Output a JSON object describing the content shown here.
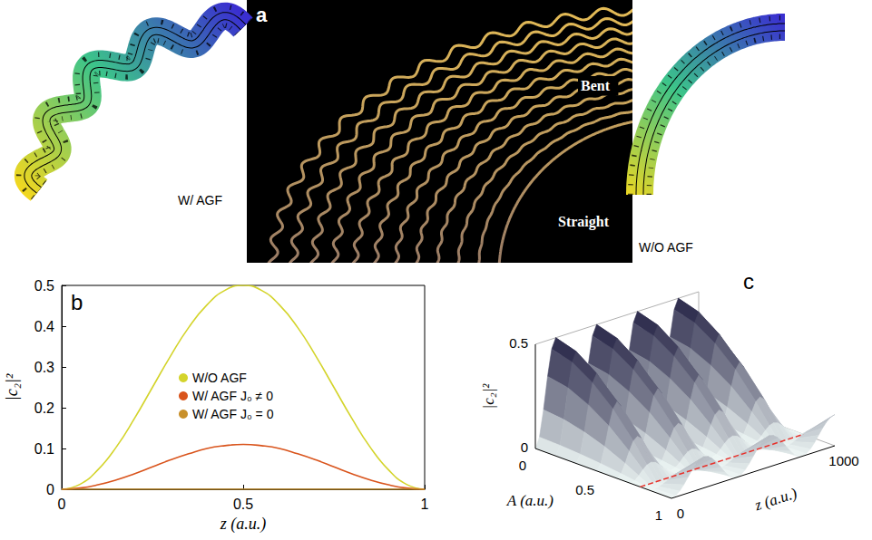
{
  "panel_a": {
    "label": "a",
    "bent": "Bent",
    "straight": "Straight",
    "with_agf": "W/ AGF",
    "without_agf": "W/O AGF"
  },
  "chart_data": [
    {
      "type": "line",
      "label": "b",
      "x_label": "z (a.u.)",
      "y_label": "|c₂|²",
      "x": [
        0,
        0.05,
        0.1,
        0.15,
        0.2,
        0.25,
        0.3,
        0.35,
        0.4,
        0.45,
        0.5,
        0.55,
        0.6,
        0.65,
        0.7,
        0.75,
        0.8,
        0.85,
        0.9,
        0.95,
        1
      ],
      "series": [
        {
          "name": "W/O AGF",
          "color": "#d4d42c",
          "values": [
            0,
            0.012,
            0.048,
            0.103,
            0.173,
            0.25,
            0.327,
            0.397,
            0.452,
            0.488,
            0.5,
            0.488,
            0.452,
            0.397,
            0.327,
            0.25,
            0.173,
            0.103,
            0.048,
            0.012,
            0
          ]
        },
        {
          "name": "W/ AGF J₀ ≠ 0",
          "color": "#d9541c",
          "values": [
            0,
            0.003,
            0.011,
            0.023,
            0.038,
            0.055,
            0.072,
            0.087,
            0.1,
            0.107,
            0.11,
            0.107,
            0.1,
            0.087,
            0.072,
            0.055,
            0.038,
            0.023,
            0.011,
            0.003,
            0
          ]
        },
        {
          "name": "W/ AGF J₀ = 0",
          "color": "#c8902a",
          "values": [
            0,
            0,
            0,
            0,
            0,
            0,
            0,
            0,
            0,
            0,
            0,
            0,
            0,
            0,
            0,
            0,
            0,
            0,
            0,
            0,
            0
          ]
        }
      ],
      "xlim": [
        0,
        1
      ],
      "xticks": [
        0,
        0.5,
        1
      ],
      "ylim": [
        0,
        0.5
      ],
      "yticks": [
        0,
        0.1,
        0.2,
        0.3,
        0.4,
        0.5
      ],
      "grid": false,
      "legend": "center"
    },
    {
      "type": "surface",
      "label": "c",
      "x_label": "z (a.u.)",
      "y_label": "A (a.u.)",
      "z_label": "|c₂|²",
      "x": [
        0,
        25,
        50,
        75,
        100,
        125,
        150,
        175,
        200,
        225,
        250,
        275,
        300,
        325,
        350,
        375,
        400,
        425,
        450,
        475,
        500,
        525,
        550,
        575,
        600,
        625,
        650,
        675,
        700,
        725,
        750,
        775,
        800,
        825,
        850,
        875,
        900,
        925,
        950,
        975,
        1000
      ],
      "y": [
        0,
        0.15,
        0.3,
        0.45,
        0.6,
        0.7,
        0.77,
        0.85,
        1
      ],
      "values": [
        [
          0,
          0.048,
          0.173,
          0.327,
          0.452,
          0.5,
          0.452,
          0.327,
          0.173,
          0.048,
          0,
          0.048,
          0.173,
          0.327,
          0.452,
          0.5,
          0.452,
          0.327,
          0.173,
          0.048,
          0,
          0.048,
          0.173,
          0.327,
          0.452,
          0.5,
          0.452,
          0.327,
          0.173,
          0.048,
          0,
          0.048,
          0.173,
          0.327,
          0.452,
          0.5,
          0.452,
          0.327,
          0.173,
          0.048,
          0
        ],
        [
          0,
          0.045,
          0.162,
          0.308,
          0.425,
          0.47,
          0.425,
          0.308,
          0.162,
          0.045,
          0,
          0.045,
          0.162,
          0.308,
          0.425,
          0.47,
          0.425,
          0.308,
          0.162,
          0.045,
          0,
          0.045,
          0.162,
          0.308,
          0.425,
          0.47,
          0.425,
          0.308,
          0.162,
          0.045,
          0,
          0.045,
          0.162,
          0.308,
          0.425,
          0.47,
          0.425,
          0.308,
          0.162,
          0.045,
          0
        ],
        [
          0,
          0.038,
          0.138,
          0.262,
          0.362,
          0.4,
          0.362,
          0.262,
          0.138,
          0.038,
          0,
          0.038,
          0.138,
          0.262,
          0.362,
          0.4,
          0.362,
          0.262,
          0.138,
          0.038,
          0,
          0.038,
          0.138,
          0.262,
          0.362,
          0.4,
          0.362,
          0.262,
          0.138,
          0.038,
          0,
          0.038,
          0.138,
          0.262,
          0.362,
          0.4,
          0.362,
          0.262,
          0.138,
          0.038,
          0
        ],
        [
          0,
          0.029,
          0.104,
          0.197,
          0.272,
          0.3,
          0.272,
          0.197,
          0.104,
          0.029,
          0,
          0.029,
          0.104,
          0.197,
          0.272,
          0.3,
          0.272,
          0.197,
          0.104,
          0.029,
          0,
          0.029,
          0.104,
          0.197,
          0.272,
          0.3,
          0.272,
          0.197,
          0.104,
          0.029,
          0,
          0.029,
          0.104,
          0.197,
          0.272,
          0.3,
          0.272,
          0.197,
          0.104,
          0.029,
          0
        ],
        [
          0,
          0.016,
          0.059,
          0.111,
          0.154,
          0.17,
          0.154,
          0.111,
          0.059,
          0.016,
          0,
          0.016,
          0.059,
          0.111,
          0.154,
          0.17,
          0.154,
          0.111,
          0.059,
          0.016,
          0,
          0.016,
          0.059,
          0.111,
          0.154,
          0.17,
          0.154,
          0.111,
          0.059,
          0.016,
          0,
          0.016,
          0.059,
          0.111,
          0.154,
          0.17,
          0.154,
          0.111,
          0.059,
          0.016,
          0
        ],
        [
          0,
          0.007,
          0.024,
          0.046,
          0.063,
          0.07,
          0.063,
          0.046,
          0.024,
          0.007,
          0,
          0.007,
          0.024,
          0.046,
          0.063,
          0.07,
          0.063,
          0.046,
          0.024,
          0.007,
          0,
          0.007,
          0.024,
          0.046,
          0.063,
          0.07,
          0.063,
          0.046,
          0.024,
          0.007,
          0,
          0.007,
          0.024,
          0.046,
          0.063,
          0.07,
          0.063,
          0.046,
          0.024,
          0.007,
          0
        ],
        [
          0,
          0,
          0,
          0,
          0,
          0,
          0,
          0,
          0,
          0,
          0,
          0,
          0,
          0,
          0,
          0,
          0,
          0,
          0,
          0,
          0,
          0,
          0,
          0,
          0,
          0,
          0,
          0,
          0,
          0,
          0,
          0,
          0,
          0,
          0,
          0,
          0,
          0,
          0,
          0,
          0
        ],
        [
          0,
          0.002,
          0.007,
          0.015,
          0.025,
          0.035,
          0.043,
          0.048,
          0.05,
          0.048,
          0.043,
          0.035,
          0.025,
          0.015,
          0.007,
          0.002,
          0,
          0.002,
          0.007,
          0.015,
          0.025,
          0.035,
          0.043,
          0.048,
          0.05,
          0.048,
          0.043,
          0.035,
          0.025,
          0.015,
          0.007,
          0.002,
          0,
          0.002,
          0.007,
          0.015,
          0.025,
          0.035,
          0.043,
          0.048,
          0.05
        ],
        [
          0,
          0.006,
          0.022,
          0.046,
          0.075,
          0.104,
          0.128,
          0.144,
          0.15,
          0.144,
          0.128,
          0.104,
          0.075,
          0.046,
          0.022,
          0.006,
          0,
          0.006,
          0.022,
          0.046,
          0.075,
          0.104,
          0.128,
          0.144,
          0.15,
          0.144,
          0.128,
          0.104,
          0.075,
          0.046,
          0.022,
          0.006,
          0,
          0.006,
          0.022,
          0.046,
          0.075,
          0.104,
          0.128,
          0.144,
          0.15
        ]
      ],
      "xlim": [
        0,
        1000
      ],
      "xticks": [
        0,
        1000
      ],
      "ylim": [
        0,
        1
      ],
      "yticks": [
        0,
        0.5,
        1
      ],
      "zlim": [
        0,
        0.5
      ],
      "zticks": [
        0,
        0.5
      ],
      "dashed_line_A": 0.77,
      "dashed_line_color": "#e8302a",
      "grid": false
    }
  ]
}
